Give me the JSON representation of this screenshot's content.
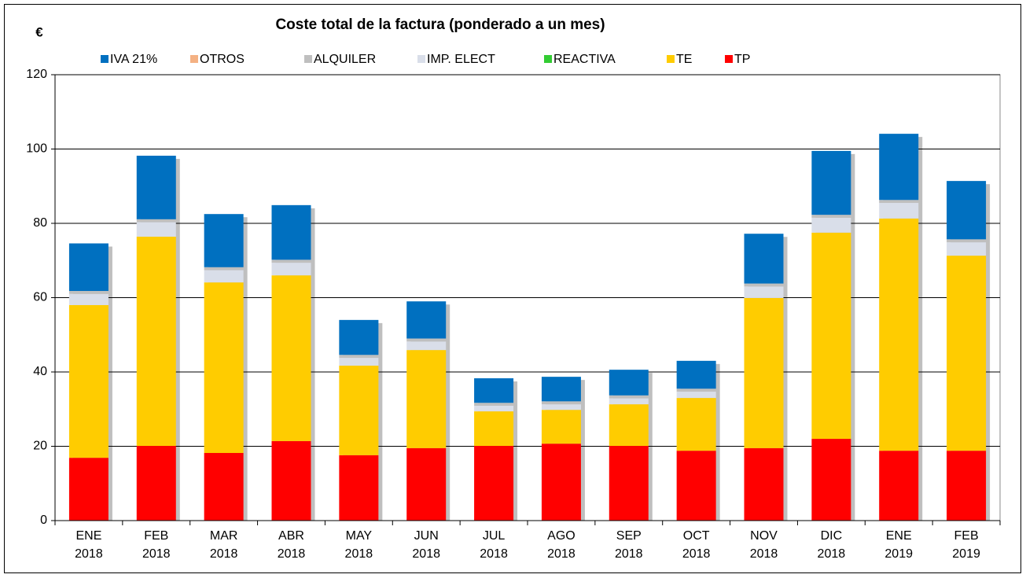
{
  "chart_data": {
    "type": "stacked_bar",
    "title": "Coste total de la factura (ponderado a un mes)",
    "ylabel": "€",
    "categories": [
      [
        "ENE",
        "2018"
      ],
      [
        "FEB",
        "2018"
      ],
      [
        "MAR",
        "2018"
      ],
      [
        "ABR",
        "2018"
      ],
      [
        "MAY",
        "2018"
      ],
      [
        "JUN",
        "2018"
      ],
      [
        "JUL",
        "2018"
      ],
      [
        "AGO",
        "2018"
      ],
      [
        "SEP",
        "2018"
      ],
      [
        "OCT",
        "2018"
      ],
      [
        "NOV",
        "2018"
      ],
      [
        "DIC",
        "2018"
      ],
      [
        "ENE",
        "2019"
      ],
      [
        "FEB",
        "2019"
      ]
    ],
    "series": [
      {
        "name": "TP",
        "color": "#ff0000",
        "values": [
          16.9,
          20.1,
          18.2,
          21.4,
          17.6,
          19.5,
          20.1,
          20.7,
          20.1,
          18.8,
          19.5,
          22.0,
          18.8,
          18.8
        ]
      },
      {
        "name": "TE",
        "color": "#ffcc00",
        "values": [
          41.1,
          56.3,
          45.9,
          44.6,
          24.1,
          26.4,
          9.3,
          9.1,
          11.2,
          14.2,
          40.4,
          55.5,
          62.5,
          52.5
        ]
      },
      {
        "name": "REACTIVA",
        "color": "#33cc33",
        "values": [
          0,
          0,
          0,
          0,
          0,
          0,
          0,
          0,
          0,
          0,
          0,
          0,
          0,
          0
        ]
      },
      {
        "name": "IMP. ELECT",
        "color": "#d9dee9",
        "values": [
          3.0,
          3.9,
          3.3,
          3.4,
          2.1,
          2.3,
          1.5,
          1.5,
          1.6,
          1.7,
          3.1,
          4.0,
          4.2,
          3.6
        ]
      },
      {
        "name": "ALQUILER",
        "color": "#bfbfbf",
        "values": [
          0.8,
          0.8,
          0.8,
          0.8,
          0.8,
          0.8,
          0.8,
          0.8,
          0.8,
          0.8,
          0.8,
          0.8,
          0.8,
          0.8
        ]
      },
      {
        "name": "OTROS",
        "color": "#f4b183",
        "values": [
          0,
          0,
          0,
          0,
          0,
          0,
          0,
          0,
          0,
          0,
          0,
          0,
          0,
          0
        ]
      },
      {
        "name": "IVA 21%",
        "color": "#0070c0",
        "values": [
          12.8,
          17.1,
          14.3,
          14.7,
          9.4,
          10.0,
          6.6,
          6.6,
          6.9,
          7.5,
          13.4,
          17.2,
          17.8,
          15.7
        ]
      }
    ],
    "ylim": [
      0,
      120
    ],
    "yticks": [
      0,
      20,
      40,
      60,
      80,
      100,
      120
    ],
    "grid": true
  }
}
